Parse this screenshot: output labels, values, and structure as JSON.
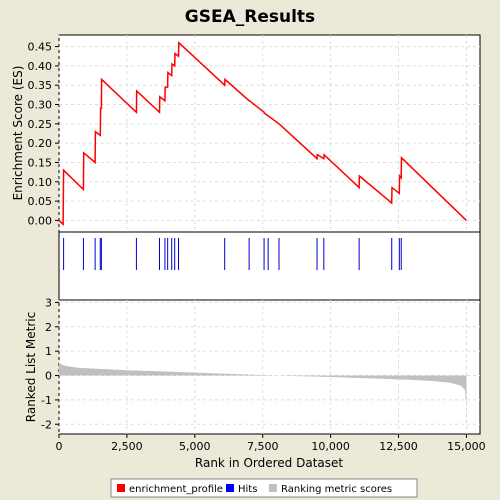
{
  "chart_data": {
    "type": "line",
    "title": "GSEA_Results",
    "xlabel": "Rank in Ordered Dataset",
    "xlim": [
      0,
      15500
    ],
    "x_ticks": [
      0,
      2500,
      5000,
      7500,
      10000,
      12500,
      15000
    ],
    "x_tick_labels": [
      "0",
      "2,500",
      "5,000",
      "7,500",
      "10,000",
      "12,500",
      "15,000"
    ],
    "colors": {
      "background": "#ece9d8",
      "plot_bg": "#ffffff",
      "grid": "#dddddd",
      "enrichment_line": "#ff0000",
      "hit_line": "#0000cc",
      "metric_fill": "#c0c0c0",
      "axis": "#000000"
    },
    "panels": [
      {
        "id": "enrichment_profile",
        "ylabel": "Enrichment Score (ES)",
        "ylim": [
          -0.03,
          0.48
        ],
        "y_ticks": [
          0.0,
          0.05,
          0.1,
          0.15,
          0.2,
          0.25,
          0.3,
          0.35,
          0.4,
          0.45
        ],
        "y_tick_labels": [
          "0.00",
          "0.05",
          "0.10",
          "0.15",
          "0.20",
          "0.25",
          "0.30",
          "0.35",
          "0.40",
          "0.45"
        ],
        "series": [
          {
            "points": [
              [
                0,
                0.0
              ],
              [
                150,
                -0.01
              ],
              [
                170,
                0.13
              ],
              [
                900,
                0.08
              ],
              [
                910,
                0.175
              ],
              [
                1330,
                0.15
              ],
              [
                1340,
                0.23
              ],
              [
                1520,
                0.22
              ],
              [
                1530,
                0.29
              ],
              [
                1560,
                0.29
              ],
              [
                1570,
                0.365
              ],
              [
                2850,
                0.28
              ],
              [
                2860,
                0.335
              ],
              [
                3700,
                0.28
              ],
              [
                3710,
                0.32
              ],
              [
                3900,
                0.31
              ],
              [
                3910,
                0.345
              ],
              [
                4000,
                0.345
              ],
              [
                4010,
                0.383
              ],
              [
                4150,
                0.375
              ],
              [
                4160,
                0.405
              ],
              [
                4260,
                0.4
              ],
              [
                4270,
                0.432
              ],
              [
                4400,
                0.425
              ],
              [
                4410,
                0.46
              ],
              [
                6100,
                0.35
              ],
              [
                6110,
                0.365
              ],
              [
                7000,
                0.31
              ],
              [
                7010,
                0.31
              ],
              [
                7550,
                0.28
              ],
              [
                7560,
                0.278
              ],
              [
                8100,
                0.25
              ],
              [
                9500,
                0.16
              ],
              [
                9510,
                0.17
              ],
              [
                9750,
                0.16
              ],
              [
                9760,
                0.17
              ],
              [
                11050,
                0.085
              ],
              [
                11060,
                0.115
              ],
              [
                12250,
                0.045
              ],
              [
                12260,
                0.085
              ],
              [
                12530,
                0.07
              ],
              [
                12540,
                0.115
              ],
              [
                12600,
                0.11
              ],
              [
                12610,
                0.162
              ],
              [
                15000,
                0.0
              ]
            ]
          }
        ]
      },
      {
        "id": "hits",
        "hits": [
          170,
          900,
          1330,
          1520,
          1560,
          2850,
          3700,
          3900,
          4000,
          4150,
          4260,
          4400,
          6100,
          7000,
          7550,
          7700,
          8100,
          9500,
          9750,
          11050,
          12250,
          12530,
          12600
        ]
      },
      {
        "id": "ranked_list_metric",
        "ylabel": "Ranked List Metric",
        "ylim": [
          -2.4,
          3.1
        ],
        "y_ticks": [
          -2,
          -1,
          0,
          1,
          2,
          3
        ],
        "y_tick_labels": [
          "-2",
          "-1",
          "0",
          "1",
          "2",
          "3"
        ],
        "metric_profile": [
          [
            0,
            0.55
          ],
          [
            100,
            0.45
          ],
          [
            300,
            0.38
          ],
          [
            700,
            0.32
          ],
          [
            1500,
            0.27
          ],
          [
            2500,
            0.22
          ],
          [
            3500,
            0.18
          ],
          [
            4500,
            0.14
          ],
          [
            5500,
            0.1
          ],
          [
            6500,
            0.06
          ],
          [
            7500,
            0.02
          ],
          [
            8000,
            0.0
          ],
          [
            9000,
            -0.03
          ],
          [
            10000,
            -0.06
          ],
          [
            11000,
            -0.1
          ],
          [
            12000,
            -0.14
          ],
          [
            13000,
            -0.18
          ],
          [
            13800,
            -0.23
          ],
          [
            14400,
            -0.3
          ],
          [
            14800,
            -0.42
          ],
          [
            14950,
            -0.6
          ],
          [
            14990,
            -1.2
          ],
          [
            15000,
            -2.25
          ]
        ]
      }
    ],
    "legend": {
      "placement": "bottom",
      "entries": [
        {
          "label": "enrichment_profile",
          "color": "#ff0000"
        },
        {
          "label": "Hits",
          "color": "#0000ff"
        },
        {
          "label": "Ranking metric scores",
          "color": "#c0c0c0"
        }
      ]
    }
  }
}
